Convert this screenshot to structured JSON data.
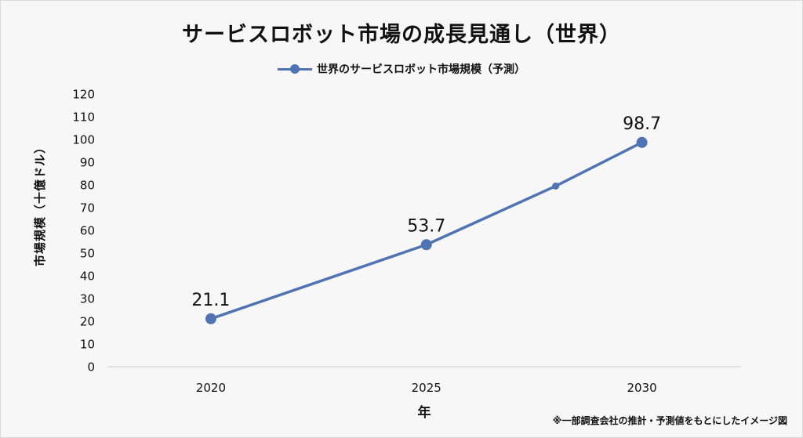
{
  "chart_data": {
    "type": "line",
    "title": "サービスロボット市場の成長見通し（世界）",
    "xlabel": "年",
    "ylabel": "市場規模（十億ドル）",
    "x": [
      2020,
      2025,
      2028,
      2030
    ],
    "x_tick_labels": [
      "2020",
      "2025",
      "2030"
    ],
    "ylim": [
      0,
      120
    ],
    "y_ticks": [
      0,
      10,
      20,
      30,
      40,
      50,
      60,
      70,
      80,
      90,
      100,
      110,
      120
    ],
    "grid": false,
    "legend_position": "top-center",
    "series": [
      {
        "name": "世界のサービスロボット市場規模（予測）",
        "values": [
          21.1,
          53.7,
          79.5,
          98.7
        ],
        "data_labels": [
          "21.1",
          "53.7",
          "",
          "98.7"
        ],
        "color": "#4f73b3"
      }
    ]
  },
  "footnote": "※一部調査会社の推計・予測値をもとにしたイメージ図"
}
